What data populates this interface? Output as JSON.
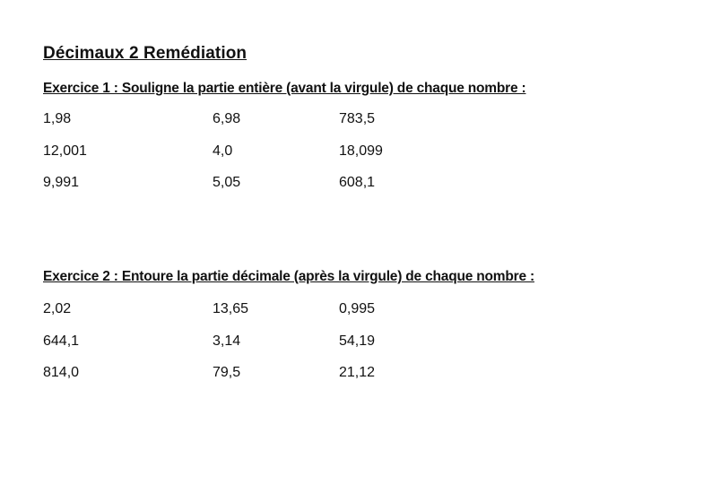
{
  "title": "Décimaux 2 Remédiation",
  "exercise1": {
    "instruction": "Exercice 1 : Souligne la partie entière (avant la virgule) de chaque nombre :",
    "rows": [
      [
        "1,98",
        "6,98",
        "783,5"
      ],
      [
        "12,001",
        "4,0",
        "18,099"
      ],
      [
        "9,991",
        "5,05",
        "608,1"
      ]
    ]
  },
  "exercise2": {
    "instruction": "Exercice 2 : Entoure la partie décimale (après la virgule) de chaque nombre :",
    "rows": [
      [
        "2,02",
        "13,65",
        "0,995"
      ],
      [
        "644,1",
        "3,14",
        "54,19"
      ],
      [
        "814,0",
        "79,5",
        "21,12"
      ]
    ]
  }
}
